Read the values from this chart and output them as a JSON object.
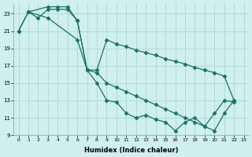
{
  "xlabel": "Humidex (Indice chaleur)",
  "bg_color": "#cff0ec",
  "grid_color": "#aed8d2",
  "line_color": "#1e7068",
  "xlim": [
    -0.5,
    23.5
  ],
  "ylim": [
    9,
    24.2
  ],
  "yticks": [
    9,
    11,
    13,
    15,
    17,
    19,
    21,
    23
  ],
  "xticks": [
    0,
    1,
    2,
    3,
    4,
    5,
    6,
    7,
    8,
    9,
    10,
    11,
    12,
    13,
    14,
    15,
    16,
    17,
    18,
    19,
    20,
    21,
    22,
    23
  ],
  "series1_x": [
    0,
    1,
    2,
    3,
    4,
    5,
    6,
    7,
    8,
    9,
    10,
    11,
    12,
    13,
    14,
    15,
    16,
    17,
    18,
    19,
    20,
    21,
    22
  ],
  "series1_y": [
    21.0,
    23.2,
    22.5,
    23.5,
    23.5,
    23.5,
    22.2,
    16.5,
    15.0,
    13.0,
    12.8,
    11.5,
    11.0,
    11.3,
    10.8,
    10.5,
    9.5,
    10.5,
    11.0,
    10.0,
    11.5,
    13.0,
    12.8
  ],
  "series2_x": [
    1,
    3,
    4,
    5,
    6,
    7,
    8,
    9,
    10,
    11,
    12,
    13,
    14,
    15,
    16,
    17,
    18,
    19,
    20,
    21,
    22
  ],
  "series2_y": [
    23.2,
    23.8,
    23.8,
    23.8,
    22.2,
    16.5,
    16.5,
    20.0,
    19.5,
    19.2,
    18.8,
    18.5,
    18.2,
    17.8,
    17.5,
    17.2,
    16.8,
    16.5,
    16.2,
    15.8,
    13.0
  ],
  "series3_x": [
    0,
    1,
    3,
    6,
    7,
    8,
    9,
    10,
    11,
    12,
    13,
    14,
    15,
    16,
    17,
    18,
    19,
    20,
    21,
    22
  ],
  "series3_y": [
    21.0,
    23.2,
    22.5,
    20.0,
    16.5,
    16.2,
    15.0,
    14.5,
    14.0,
    13.5,
    13.0,
    12.5,
    12.0,
    11.5,
    11.0,
    10.5,
    10.0,
    9.5,
    11.5,
    13.0
  ]
}
